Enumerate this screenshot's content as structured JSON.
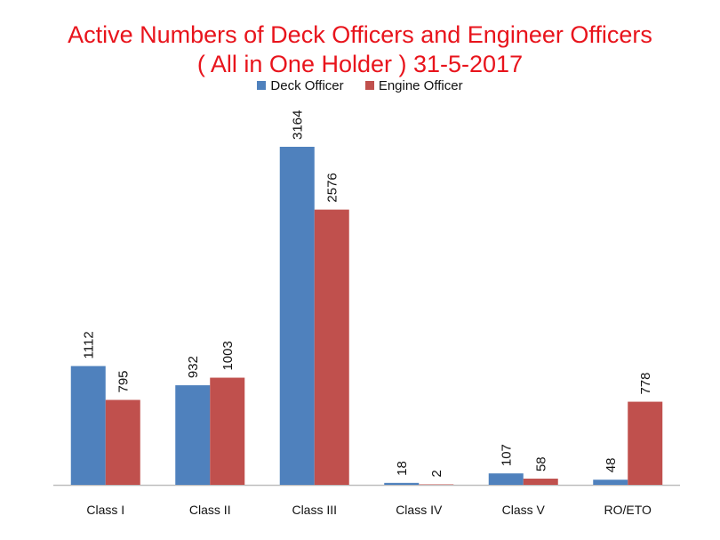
{
  "chart_data": {
    "type": "bar",
    "title": "Active Numbers of Deck Officers and Engineer Officers",
    "subtitle": "( All in One Holder ) 31-5-2017",
    "xlabel": "",
    "ylabel": "",
    "categories": [
      "Class I",
      "Class II",
      "Class III",
      "Class IV",
      "Class V",
      "RO/ETO"
    ],
    "series": [
      {
        "name": "Deck Officer",
        "color": "#4f81bd",
        "values": [
          1112,
          932,
          3164,
          18,
          107,
          48
        ]
      },
      {
        "name": "Engine Officer",
        "color": "#c0504d",
        "values": [
          795,
          1003,
          2576,
          2,
          58,
          778
        ]
      }
    ],
    "ylim": [
      0,
      3164
    ],
    "grid": false,
    "legend_position": "top",
    "data_labels": true
  }
}
